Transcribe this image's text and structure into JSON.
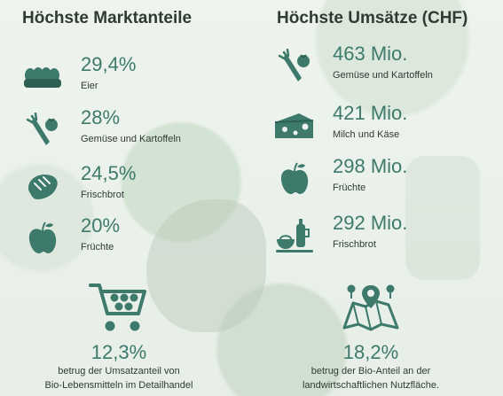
{
  "accent_color": "#3d7a6b",
  "left": {
    "title": "Höchste Marktanteile",
    "items": [
      {
        "icon": "egg-carton-icon",
        "value": "29,4%",
        "label": "Eier"
      },
      {
        "icon": "carrot-tomato-icon",
        "value": "28%",
        "label": "Gemüse und Kartoffeln"
      },
      {
        "icon": "bread-icon",
        "value": "24,5%",
        "label": "Frischbrot"
      },
      {
        "icon": "apple-icon",
        "value": "20%",
        "label": "Früchte"
      }
    ],
    "summary": {
      "icon": "shopping-cart-icon",
      "value": "12,3%",
      "line1": "betrug der Umsatzanteil von",
      "line2": "Bio-Lebensmitteln im Detailhandel"
    }
  },
  "right": {
    "title": "Höchste Umsätze (CHF)",
    "items": [
      {
        "icon": "carrot-tomato-icon",
        "value": "463 Mio.",
        "label": "Gemüse und Kartoffeln"
      },
      {
        "icon": "cheese-icon",
        "value": "421 Mio.",
        "label": "Milch und Käse"
      },
      {
        "icon": "apple-icon",
        "value": "298 Mio.",
        "label": "Früchte"
      },
      {
        "icon": "breakfast-icon",
        "value": "292 Mio.",
        "label": "Frischbrot"
      }
    ],
    "summary": {
      "icon": "farmland-map-icon",
      "value": "18,2%",
      "line1": "betrug der Bio-Anteil an der",
      "line2": "landwirtschaftlichen Nutzfläche."
    }
  }
}
